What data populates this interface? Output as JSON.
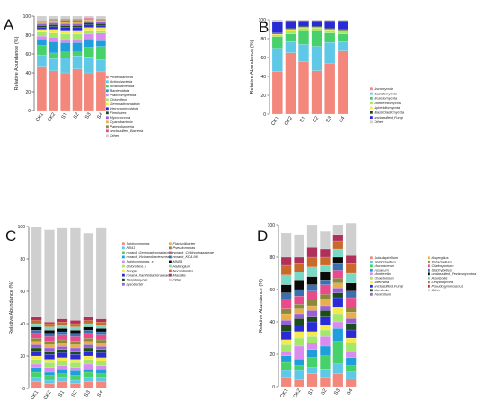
{
  "chart_data": [
    {
      "panel_label": "A",
      "type": "bar",
      "stacked": true,
      "ylabel": "Relative Abundance (%)",
      "ylim": [
        0,
        100
      ],
      "yticks": [
        0,
        20,
        40,
        60,
        80,
        100
      ],
      "categories": [
        "CK1",
        "CK2",
        "S1",
        "S2",
        "S3",
        "S4"
      ],
      "series": [
        {
          "name": "Proteobacteria",
          "color": "#f4877b",
          "values": [
            47,
            42,
            40,
            44,
            40,
            41
          ]
        },
        {
          "name": "Actinobacteria",
          "color": "#5ec8e6",
          "values": [
            12,
            13,
            16,
            14,
            17,
            13
          ]
        },
        {
          "name": "Acidobacteriota",
          "color": "#47d16a",
          "values": [
            10,
            6,
            6,
            4,
            10,
            14
          ]
        },
        {
          "name": "Bacteroidota",
          "color": "#1f9edc",
          "values": [
            7,
            12,
            10,
            10,
            9,
            6
          ]
        },
        {
          "name": "Planctomycetota",
          "color": "#d98bf0",
          "values": [
            3,
            5,
            4,
            4,
            5,
            8
          ]
        },
        {
          "name": "Chloroflexi",
          "color": "#a4e86a",
          "values": [
            4,
            4,
            5,
            5,
            4,
            3
          ]
        },
        {
          "name": "Gemmatimonadota",
          "color": "#f5e94d",
          "values": [
            3,
            4,
            4,
            4,
            3,
            3
          ]
        },
        {
          "name": "Verrucomicrobiota",
          "color": "#2b2bd6",
          "values": [
            2,
            3,
            3,
            3,
            3,
            2
          ]
        },
        {
          "name": "Firmicutes",
          "color": "#1a4d1a",
          "values": [
            2,
            2,
            2,
            2,
            2,
            2
          ]
        },
        {
          "name": "Myxococcota",
          "color": "#9a5fd6",
          "values": [
            2,
            2,
            2,
            2,
            2,
            2
          ]
        },
        {
          "name": "Cyanobacteria",
          "color": "#e7b04a",
          "values": [
            1,
            2,
            2,
            2,
            1,
            1
          ]
        },
        {
          "name": "Patescibacteria",
          "color": "#8a8a3a",
          "values": [
            1,
            1,
            2,
            2,
            1,
            1
          ]
        },
        {
          "name": "unclassified_Bacteria",
          "color": "#e84a8c",
          "values": [
            1,
            1,
            1,
            1,
            1,
            1
          ]
        },
        {
          "name": "Other",
          "color": "#cfcfcf",
          "values": [
            5,
            3,
            3,
            3,
            2,
            3
          ]
        }
      ]
    },
    {
      "panel_label": "B",
      "type": "bar",
      "stacked": true,
      "ylabel": "Relative Abundance (%)",
      "ylim": [
        0,
        100
      ],
      "yticks": [
        0,
        20,
        40,
        60,
        80,
        100
      ],
      "categories": [
        "CK1",
        "CK2",
        "S1",
        "S2",
        "S3",
        "S4"
      ],
      "series": [
        {
          "name": "Ascomycota",
          "color": "#f4877b",
          "values": [
            45,
            65,
            56,
            46,
            54,
            67
          ]
        },
        {
          "name": "Basidiomycota",
          "color": "#5ec8e6",
          "values": [
            25,
            12,
            18,
            26,
            22,
            10
          ]
        },
        {
          "name": "Rozellomycota",
          "color": "#47d16a",
          "values": [
            12,
            8,
            14,
            16,
            10,
            8
          ]
        },
        {
          "name": "Mortierellomycota",
          "color": "#a4e86a",
          "values": [
            2,
            3,
            3,
            3,
            3,
            3
          ]
        },
        {
          "name": "Aphelidiomycota",
          "color": "#f5e94d",
          "values": [
            1,
            2,
            1,
            1,
            1,
            1
          ]
        },
        {
          "name": "Blastocladiomycota",
          "color": "#1a4d1a",
          "values": [
            1,
            1,
            1,
            1,
            1,
            1
          ]
        },
        {
          "name": "unclassified_Fungi",
          "color": "#2b2bd6",
          "values": [
            12,
            8,
            6,
            6,
            8,
            9
          ]
        },
        {
          "name": "Other",
          "color": "#cfcfcf",
          "values": [
            2,
            1,
            1,
            1,
            1,
            1
          ]
        }
      ]
    },
    {
      "panel_label": "C",
      "type": "bar",
      "stacked": true,
      "ylabel": "Relative Abundance (%)",
      "ylim": [
        0,
        100
      ],
      "yticks": [
        0,
        20,
        40,
        60,
        80,
        100
      ],
      "categories": [
        "CK1",
        "CK2",
        "S1",
        "S2",
        "S3",
        "S4"
      ],
      "series": [
        {
          "name": "Sphingomonas",
          "color": "#f4877b",
          "values": [
            4,
            3,
            4,
            3,
            4,
            4
          ]
        },
        {
          "name": "RB41",
          "color": "#5ec8e6",
          "values": [
            3,
            2,
            3,
            2,
            3,
            3
          ]
        },
        {
          "name": "norank_Gemmatimonadaceae",
          "color": "#47d16a",
          "values": [
            3,
            3,
            2,
            3,
            3,
            2
          ]
        },
        {
          "name": "norank_Vicinamibacteraceae",
          "color": "#1f9edc",
          "values": [
            3,
            2,
            3,
            3,
            2,
            3
          ]
        },
        {
          "name": "Sphingomonas_x",
          "color": "#d98bf0",
          "values": [
            2,
            3,
            2,
            2,
            3,
            2
          ]
        },
        {
          "name": "Chloroflexi_x",
          "color": "#a4e86a",
          "values": [
            3,
            3,
            3,
            3,
            3,
            3
          ]
        },
        {
          "name": "Dongia",
          "color": "#f5e94d",
          "values": [
            2,
            2,
            2,
            2,
            2,
            2
          ]
        },
        {
          "name": "norank_Xanthobacteraceae",
          "color": "#2b2bd6",
          "values": [
            3,
            3,
            3,
            3,
            3,
            3
          ]
        },
        {
          "name": "Streptomyces",
          "color": "#1a4d1a",
          "values": [
            2,
            2,
            2,
            2,
            2,
            2
          ]
        },
        {
          "name": "Lysobacter",
          "color": "#9a5fd6",
          "values": [
            2,
            2,
            2,
            2,
            2,
            2
          ]
        },
        {
          "name": "Flavisolibacter",
          "color": "#e7b04a",
          "values": [
            2,
            2,
            2,
            2,
            2,
            2
          ]
        },
        {
          "name": "Pseudomonas",
          "color": "#8a8a3a",
          "values": [
            2,
            2,
            2,
            2,
            2,
            2
          ]
        },
        {
          "name": "norank_Chitinophagaceae",
          "color": "#e84a8c",
          "values": [
            3,
            3,
            3,
            3,
            3,
            3
          ]
        },
        {
          "name": "norank_KD4-96",
          "color": "#3a6fb0",
          "values": [
            2,
            2,
            2,
            2,
            2,
            2
          ]
        },
        {
          "name": "MND1",
          "color": "#0a0a0a",
          "values": [
            2,
            2,
            2,
            2,
            2,
            2
          ]
        },
        {
          "name": "Haliangium",
          "color": "#7ad9c4",
          "values": [
            2,
            2,
            2,
            2,
            2,
            2
          ]
        },
        {
          "name": "Nocardioides",
          "color": "#c96a2a",
          "values": [
            2,
            2,
            2,
            2,
            2,
            2
          ]
        },
        {
          "name": "Massilia",
          "color": "#b0305a",
          "values": [
            2,
            1,
            2,
            2,
            2,
            2
          ]
        },
        {
          "name": "Other",
          "color": "#cfcfcf",
          "values": [
            56,
            57,
            56,
            57,
            52,
            56
          ]
        }
      ]
    },
    {
      "panel_label": "D",
      "type": "bar",
      "stacked": true,
      "ylabel": "Relative Abundance (%)",
      "ylim": [
        0,
        100
      ],
      "yticks": [
        0,
        20,
        40,
        60,
        80,
        100
      ],
      "categories": [
        "CK1",
        "CK2",
        "S1",
        "S2",
        "S3",
        "S4"
      ],
      "series": [
        {
          "name": "Subulispicillium",
          "color": "#f4877b",
          "values": [
            6,
            4,
            8,
            6,
            8,
            5
          ]
        },
        {
          "name": "Verticicladium",
          "color": "#5ec8e6",
          "values": [
            4,
            6,
            4,
            5,
            6,
            4
          ]
        },
        {
          "name": "Mucoraceum",
          "color": "#47d16a",
          "values": [
            5,
            3,
            6,
            8,
            14,
            4
          ]
        },
        {
          "name": "Fusarium",
          "color": "#1f9edc",
          "values": [
            4,
            4,
            5,
            6,
            8,
            5
          ]
        },
        {
          "name": "Mortierella",
          "color": "#d98bf0",
          "values": [
            3,
            8,
            4,
            6,
            4,
            4
          ]
        },
        {
          "name": "Chaetomium",
          "color": "#a4e86a",
          "values": [
            4,
            5,
            4,
            4,
            5,
            5
          ]
        },
        {
          "name": "Alternaria",
          "color": "#f5e94d",
          "values": [
            3,
            4,
            3,
            3,
            4,
            3
          ]
        },
        {
          "name": "unclassified_Fungi",
          "color": "#2b2bd6",
          "values": [
            5,
            4,
            6,
            5,
            6,
            5
          ]
        },
        {
          "name": "Humicola",
          "color": "#1a4d1a",
          "values": [
            4,
            4,
            3,
            4,
            3,
            4
          ]
        },
        {
          "name": "Penicillium",
          "color": "#9a5fd6",
          "values": [
            3,
            3,
            4,
            3,
            3,
            3
          ]
        },
        {
          "name": "Aspergillus",
          "color": "#e7b04a",
          "values": [
            4,
            3,
            3,
            4,
            3,
            4
          ]
        },
        {
          "name": "Tetracladium",
          "color": "#8a8a3a",
          "values": [
            3,
            3,
            4,
            3,
            3,
            3
          ]
        },
        {
          "name": "Cladosporium",
          "color": "#e84a8c",
          "values": [
            6,
            5,
            5,
            6,
            5,
            6
          ]
        },
        {
          "name": "Stachybotrys",
          "color": "#3a6fb0",
          "values": [
            4,
            4,
            4,
            3,
            4,
            4
          ]
        },
        {
          "name": "unclassified_Pezizomycotina",
          "color": "#0a0a0a",
          "values": [
            5,
            6,
            5,
            5,
            4,
            5
          ]
        },
        {
          "name": "Ascobolus",
          "color": "#7ad9c4",
          "values": [
            6,
            5,
            6,
            4,
            5,
            6
          ]
        },
        {
          "name": "Lecythophora",
          "color": "#c96a2a",
          "values": [
            6,
            5,
            6,
            5,
            5,
            6
          ]
        },
        {
          "name": "Pseudogymnoascus",
          "color": "#b0305a",
          "values": [
            5,
            4,
            6,
            5,
            4,
            5
          ]
        },
        {
          "name": "Other",
          "color": "#cfcfcf",
          "values": [
            15,
            14,
            14,
            11,
            6,
            20
          ]
        }
      ]
    }
  ]
}
